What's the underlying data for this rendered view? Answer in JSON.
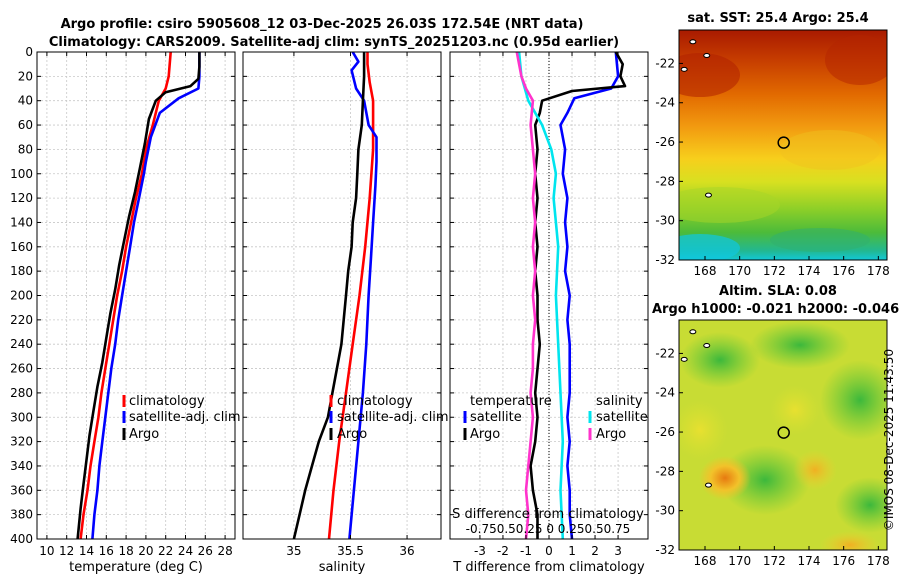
{
  "titles": {
    "line1": "Argo profile: csiro 5905608_12 03-Dec-2025 26.03S 172.54E (NRT data)",
    "line2": "Climatology: CARS2009. Satellite-adj clim: synTS_20251203.nc (0.95d earlier)",
    "sst_title": "sat. SST: 25.4 Argo: 25.4",
    "sla_title1": "Altim. SLA: 0.08",
    "sla_title2": "Argo h1000: -0.021 h2000: -0.046",
    "timestamp": "©IMOS 08-Dec-2025 11:43:50"
  },
  "colors": {
    "climatology": "#ff0000",
    "satellite": "#0000ff",
    "argo": "#000000",
    "s_satellite": "#00e5ee",
    "s_argo": "#ff33cc"
  },
  "chart_data": [
    {
      "id": "temperature",
      "type": "line",
      "xlabel": "temperature (deg C)",
      "ylabel": "",
      "xlim": [
        9,
        29
      ],
      "ylim": [
        400,
        0
      ],
      "xticks": [
        10,
        12,
        14,
        16,
        18,
        20,
        22,
        24,
        26,
        28
      ],
      "yticks": [
        0,
        20,
        40,
        60,
        80,
        100,
        120,
        140,
        160,
        180,
        200,
        220,
        240,
        260,
        280,
        300,
        320,
        340,
        360,
        380,
        400
      ],
      "legend": [
        "climatology",
        "satellite-adj. clim",
        "Argo"
      ],
      "series": [
        {
          "name": "climatology",
          "points": [
            [
              22.5,
              0
            ],
            [
              22.3,
              20
            ],
            [
              22.0,
              30
            ],
            [
              21.3,
              40
            ],
            [
              20.7,
              60
            ],
            [
              20.0,
              80
            ],
            [
              19.6,
              100
            ],
            [
              19.0,
              120
            ],
            [
              18.5,
              140
            ],
            [
              18.0,
              160
            ],
            [
              17.6,
              180
            ],
            [
              17.1,
              200
            ],
            [
              16.7,
              220
            ],
            [
              16.3,
              240
            ],
            [
              15.9,
              260
            ],
            [
              15.5,
              280
            ],
            [
              15.2,
              300
            ],
            [
              14.8,
              320
            ],
            [
              14.4,
              340
            ],
            [
              14.1,
              360
            ],
            [
              13.7,
              380
            ],
            [
              13.4,
              400
            ]
          ]
        },
        {
          "name": "satellite-adj. clim",
          "points": [
            [
              25.4,
              0
            ],
            [
              25.4,
              20
            ],
            [
              25.3,
              30
            ],
            [
              23.3,
              38
            ],
            [
              21.4,
              50
            ],
            [
              20.5,
              70
            ],
            [
              20.0,
              90
            ],
            [
              19.8,
              100
            ],
            [
              19.3,
              120
            ],
            [
              18.8,
              140
            ],
            [
              18.4,
              160
            ],
            [
              18.0,
              180
            ],
            [
              17.6,
              200
            ],
            [
              17.2,
              220
            ],
            [
              16.9,
              240
            ],
            [
              16.5,
              260
            ],
            [
              16.2,
              280
            ],
            [
              15.9,
              300
            ],
            [
              15.6,
              320
            ],
            [
              15.3,
              340
            ],
            [
              15.1,
              360
            ],
            [
              14.8,
              380
            ],
            [
              14.6,
              400
            ]
          ]
        },
        {
          "name": "Argo",
          "points": [
            [
              25.4,
              0
            ],
            [
              25.4,
              12
            ],
            [
              25.3,
              22
            ],
            [
              24.5,
              28
            ],
            [
              22.0,
              33
            ],
            [
              21.0,
              40
            ],
            [
              20.3,
              55
            ],
            [
              19.9,
              75
            ],
            [
              19.4,
              95
            ],
            [
              18.9,
              115
            ],
            [
              18.3,
              135
            ],
            [
              17.8,
              155
            ],
            [
              17.3,
              175
            ],
            [
              16.9,
              195
            ],
            [
              16.4,
              215
            ],
            [
              16.0,
              235
            ],
            [
              15.6,
              255
            ],
            [
              15.1,
              275
            ],
            [
              14.7,
              295
            ],
            [
              14.3,
              315
            ],
            [
              14.0,
              335
            ],
            [
              13.7,
              355
            ],
            [
              13.4,
              375
            ],
            [
              13.1,
              400
            ]
          ]
        }
      ]
    },
    {
      "id": "salinity",
      "type": "line",
      "xlabel": "salinity",
      "xlim": [
        34.55,
        36.3
      ],
      "ylim": [
        400,
        0
      ],
      "xticks": [
        35,
        35.5,
        36
      ],
      "xticklabels": [
        "35",
        "35.5",
        "36"
      ],
      "legend": [
        "climatology",
        "satellite-adj. clim",
        "Argo"
      ],
      "series": [
        {
          "name": "climatology",
          "points": [
            [
              35.65,
              0
            ],
            [
              35.65,
              10
            ],
            [
              35.67,
              25
            ],
            [
              35.7,
              40
            ],
            [
              35.7,
              80
            ],
            [
              35.67,
              120
            ],
            [
              35.63,
              160
            ],
            [
              35.58,
              200
            ],
            [
              35.52,
              240
            ],
            [
              35.46,
              280
            ],
            [
              35.4,
              320
            ],
            [
              35.35,
              360
            ],
            [
              35.31,
              400
            ]
          ]
        },
        {
          "name": "satellite-adj. clim",
          "points": [
            [
              35.52,
              0
            ],
            [
              35.57,
              8
            ],
            [
              35.51,
              15
            ],
            [
              35.55,
              30
            ],
            [
              35.62,
              40
            ],
            [
              35.66,
              60
            ],
            [
              35.73,
              70
            ],
            [
              35.73,
              90
            ],
            [
              35.72,
              110
            ],
            [
              35.7,
              140
            ],
            [
              35.68,
              170
            ],
            [
              35.66,
              200
            ],
            [
              35.64,
              240
            ],
            [
              35.61,
              280
            ],
            [
              35.57,
              320
            ],
            [
              35.53,
              360
            ],
            [
              35.49,
              400
            ]
          ]
        },
        {
          "name": "Argo",
          "points": [
            [
              35.62,
              0
            ],
            [
              35.62,
              20
            ],
            [
              35.61,
              40
            ],
            [
              35.6,
              60
            ],
            [
              35.57,
              80
            ],
            [
              35.56,
              100
            ],
            [
              35.55,
              120
            ],
            [
              35.52,
              140
            ],
            [
              35.51,
              160
            ],
            [
              35.48,
              180
            ],
            [
              35.46,
              200
            ],
            [
              35.44,
              220
            ],
            [
              35.42,
              240
            ],
            [
              35.38,
              260
            ],
            [
              35.34,
              280
            ],
            [
              35.3,
              300
            ],
            [
              35.22,
              320
            ],
            [
              35.16,
              340
            ],
            [
              35.1,
              360
            ],
            [
              35.05,
              380
            ],
            [
              35.0,
              400
            ]
          ]
        }
      ]
    },
    {
      "id": "difference",
      "type": "line",
      "xlabel": "T difference from climatology",
      "xlim": [
        -4.3,
        4.3
      ],
      "ylim": [
        400,
        0
      ],
      "xticks": [
        -3,
        -2,
        -1,
        0,
        1,
        2,
        3
      ],
      "xticklabels": [
        "-3",
        "-2",
        "-1",
        "0",
        "1",
        "2",
        "3"
      ],
      "top_axis_label": "S difference from climatology",
      "top_axis_ticklabels": "-0.750.50.25 0 0.250.50.75",
      "legend": {
        "temperature_title": "temperature",
        "temperature_entries": [
          "satellite",
          "Argo"
        ],
        "salinity_title": "salinity",
        "salinity_entries": [
          "satellite",
          "Argo"
        ]
      },
      "series": [
        {
          "name": "T satellite",
          "points": [
            [
              2.9,
              0
            ],
            [
              3.0,
              20
            ],
            [
              2.7,
              30
            ],
            [
              1.1,
              38
            ],
            [
              0.8,
              50
            ],
            [
              0.5,
              60
            ],
            [
              0.7,
              80
            ],
            [
              0.6,
              100
            ],
            [
              0.8,
              120
            ],
            [
              0.7,
              140
            ],
            [
              0.8,
              160
            ],
            [
              0.7,
              180
            ],
            [
              0.9,
              200
            ],
            [
              0.8,
              220
            ],
            [
              0.9,
              240
            ],
            [
              0.9,
              260
            ],
            [
              0.9,
              280
            ],
            [
              0.8,
              300
            ],
            [
              0.9,
              320
            ],
            [
              0.8,
              340
            ],
            [
              0.9,
              360
            ],
            [
              0.9,
              380
            ],
            [
              1.0,
              400
            ]
          ]
        },
        {
          "name": "T Argo",
          "points": [
            [
              2.9,
              0
            ],
            [
              3.2,
              10
            ],
            [
              3.1,
              20
            ],
            [
              3.3,
              28
            ],
            [
              1.0,
              32
            ],
            [
              -0.3,
              40
            ],
            [
              -0.4,
              50
            ],
            [
              -0.6,
              60
            ],
            [
              -0.5,
              80
            ],
            [
              -0.6,
              100
            ],
            [
              -0.5,
              120
            ],
            [
              -0.6,
              140
            ],
            [
              -0.5,
              160
            ],
            [
              -0.6,
              180
            ],
            [
              -0.5,
              200
            ],
            [
              -0.5,
              220
            ],
            [
              -0.4,
              240
            ],
            [
              -0.5,
              260
            ],
            [
              -0.6,
              280
            ],
            [
              -0.5,
              300
            ],
            [
              -0.6,
              320
            ],
            [
              -0.8,
              340
            ],
            [
              -0.7,
              360
            ],
            [
              -0.5,
              380
            ],
            [
              -0.5,
              400
            ]
          ]
        },
        {
          "name": "S satellite",
          "points": [
            [
              -1.3,
              0
            ],
            [
              -1.2,
              20
            ],
            [
              -0.9,
              40
            ],
            [
              -0.3,
              60
            ],
            [
              0.1,
              80
            ],
            [
              0.3,
              100
            ],
            [
              0.2,
              120
            ],
            [
              0.3,
              140
            ],
            [
              0.4,
              160
            ],
            [
              0.3,
              200
            ],
            [
              0.4,
              240
            ],
            [
              0.5,
              280
            ],
            [
              0.6,
              320
            ],
            [
              0.5,
              360
            ],
            [
              0.6,
              400
            ]
          ]
        },
        {
          "name": "S Argo",
          "points": [
            [
              -1.4,
              0
            ],
            [
              -1.3,
              10
            ],
            [
              -1.2,
              20
            ],
            [
              -1.0,
              30
            ],
            [
              -0.7,
              40
            ],
            [
              -0.8,
              60
            ],
            [
              -0.7,
              80
            ],
            [
              -0.6,
              100
            ],
            [
              -0.7,
              120
            ],
            [
              -0.6,
              140
            ],
            [
              -0.7,
              160
            ],
            [
              -0.6,
              180
            ],
            [
              -0.7,
              200
            ],
            [
              -0.6,
              220
            ],
            [
              -0.7,
              240
            ],
            [
              -0.7,
              260
            ],
            [
              -0.8,
              280
            ],
            [
              -0.7,
              300
            ],
            [
              -0.8,
              320
            ],
            [
              -0.9,
              340
            ],
            [
              -1.0,
              360
            ],
            [
              -0.9,
              380
            ],
            [
              -1.0,
              400
            ]
          ]
        }
      ]
    },
    {
      "id": "sst_map",
      "type": "heatmap",
      "title": "sat. SST: 25.4 Argo: 25.4",
      "xlim": [
        166.5,
        178.5
      ],
      "ylim": [
        -32,
        -20.3
      ],
      "xticks": [
        168,
        170,
        172,
        174,
        176,
        178
      ],
      "yticks": [
        -22,
        -24,
        -26,
        -28,
        -30,
        -32
      ],
      "argo_position": [
        172.54,
        -26.03
      ]
    },
    {
      "id": "sla_map",
      "type": "heatmap",
      "title": "Altim. SLA: 0.08 / Argo h1000: -0.021 h2000: -0.046",
      "xlim": [
        166.5,
        178.5
      ],
      "ylim": [
        -32,
        -20.3
      ],
      "xticks": [
        168,
        170,
        172,
        174,
        176,
        178
      ],
      "yticks": [
        -22,
        -24,
        -26,
        -28,
        -30,
        -32
      ],
      "argo_position": [
        172.54,
        -26.03
      ]
    }
  ]
}
